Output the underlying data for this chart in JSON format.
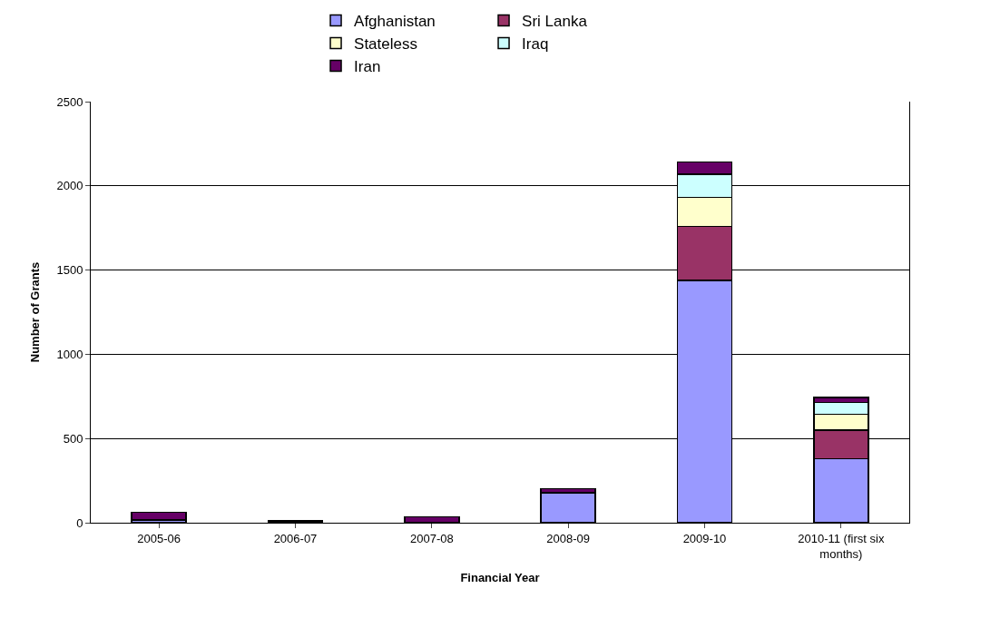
{
  "chart_data": {
    "type": "bar",
    "stacked": true,
    "xlabel": "Financial Year",
    "ylabel": "Number of Grants",
    "categories": [
      "2005-06",
      "2006-07",
      "2007-08",
      "2008-09",
      "2009-10",
      "2010-11 (first six months)"
    ],
    "series": [
      {
        "name": "Afghanistan",
        "color": "#9999ff",
        "values": [
          16,
          null,
          null,
          178,
          1439,
          381
        ]
      },
      {
        "name": "Sri Lanka",
        "color": "#993366",
        "values": [
          null,
          null,
          null,
          null,
          319,
          169
        ]
      },
      {
        "name": "Stateless",
        "color": "#ffffcc",
        "values": [
          null,
          null,
          null,
          null,
          173,
          93
        ]
      },
      {
        "name": "Iraq",
        "color": "#ccffff",
        "values": [
          null,
          null,
          null,
          null,
          138,
          70
        ]
      },
      {
        "name": "Iran",
        "color": "#660066",
        "values": [
          45,
          10,
          34,
          23,
          72,
          30
        ]
      }
    ],
    "ylim": [
      0,
      2500
    ],
    "yticks": [
      0,
      500,
      1000,
      1500,
      2000,
      2500
    ],
    "grid": "y",
    "legend": "top"
  }
}
